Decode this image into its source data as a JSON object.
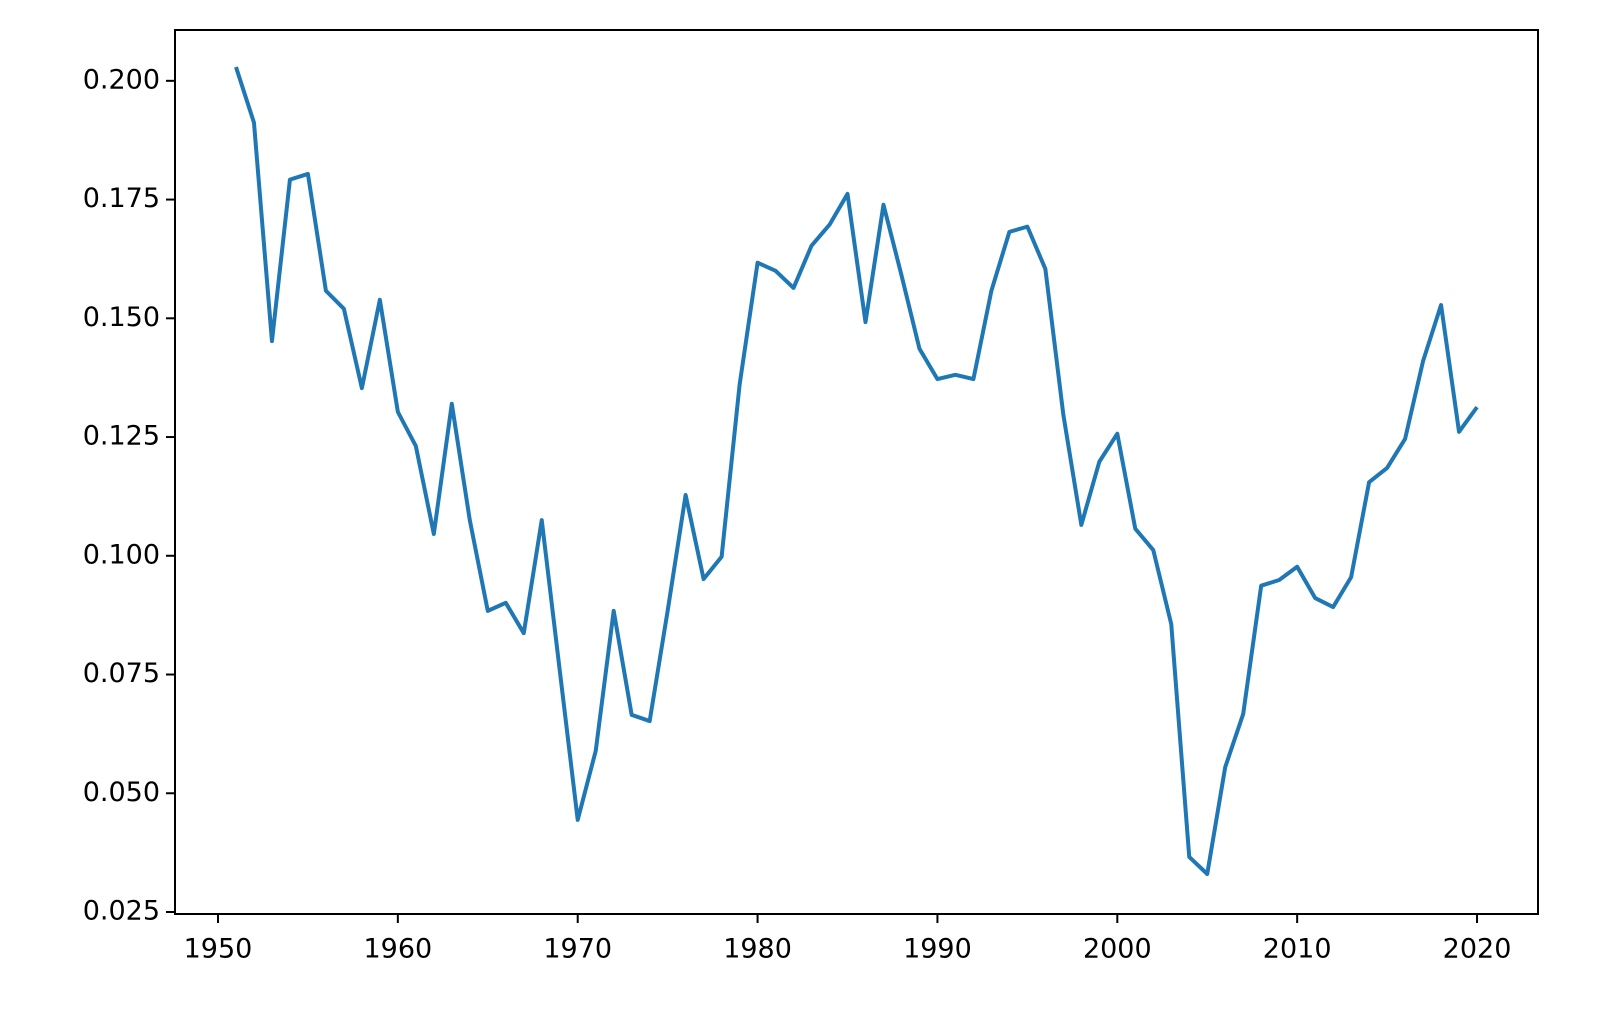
{
  "chart_data": {
    "type": "line",
    "x": [
      1951,
      1952,
      1953,
      1954,
      1955,
      1956,
      1957,
      1958,
      1959,
      1960,
      1961,
      1962,
      1963,
      1964,
      1965,
      1966,
      1967,
      1968,
      1969,
      1970,
      1971,
      1972,
      1973,
      1974,
      1975,
      1976,
      1977,
      1978,
      1979,
      1980,
      1981,
      1982,
      1983,
      1984,
      1985,
      1986,
      1987,
      1988,
      1989,
      1990,
      1991,
      1992,
      1993,
      1994,
      1995,
      1996,
      1997,
      1998,
      1999,
      2000,
      2001,
      2002,
      2003,
      2004,
      2005,
      2006,
      2007,
      2008,
      2009,
      2010,
      2011,
      2012,
      2013,
      2014,
      2015,
      2016,
      2017,
      2018,
      2019,
      2020
    ],
    "values": [
      0.2029,
      0.1912,
      0.1452,
      0.1792,
      0.1804,
      0.1558,
      0.152,
      0.1353,
      0.1539,
      0.1303,
      0.1231,
      0.1046,
      0.132,
      0.1075,
      0.0884,
      0.0901,
      0.0837,
      0.1075,
      0.0759,
      0.0444,
      0.0589,
      0.0884,
      0.0665,
      0.0652,
      0.0884,
      0.1128,
      0.0951,
      0.0998,
      0.136,
      0.1617,
      0.16,
      0.1564,
      0.1653,
      0.1697,
      0.1762,
      0.1492,
      0.1739,
      0.1591,
      0.1436,
      0.1372,
      0.1381,
      0.1372,
      0.1558,
      0.1682,
      0.1693,
      0.1604,
      0.1297,
      0.1065,
      0.1198,
      0.1257,
      0.1057,
      0.1012,
      0.0856,
      0.0366,
      0.033,
      0.0555,
      0.0667,
      0.0937,
      0.0949,
      0.0977,
      0.0911,
      0.0892,
      0.0955,
      0.1155,
      0.1185,
      0.1246,
      0.141,
      0.1528,
      0.1261,
      0.1313
    ],
    "color": "#1f77b4",
    "xlim": [
      1947.61,
      2023.39
    ],
    "xticks": [
      1950,
      1960,
      1970,
      1980,
      1990,
      2000,
      2010,
      2020
    ],
    "ylim": [
      0.02458,
      0.2107
    ],
    "yticks": [
      {
        "value": 0.025,
        "label": "0.025"
      },
      {
        "value": 0.05,
        "label": "0.050"
      },
      {
        "value": 0.075,
        "label": "0.075"
      },
      {
        "value": 0.1,
        "label": "0.100"
      },
      {
        "value": 0.125,
        "label": "0.125"
      },
      {
        "value": 0.15,
        "label": "0.150"
      },
      {
        "value": 0.175,
        "label": "0.175"
      },
      {
        "value": 0.2,
        "label": "0.200"
      }
    ],
    "grid": false
  }
}
